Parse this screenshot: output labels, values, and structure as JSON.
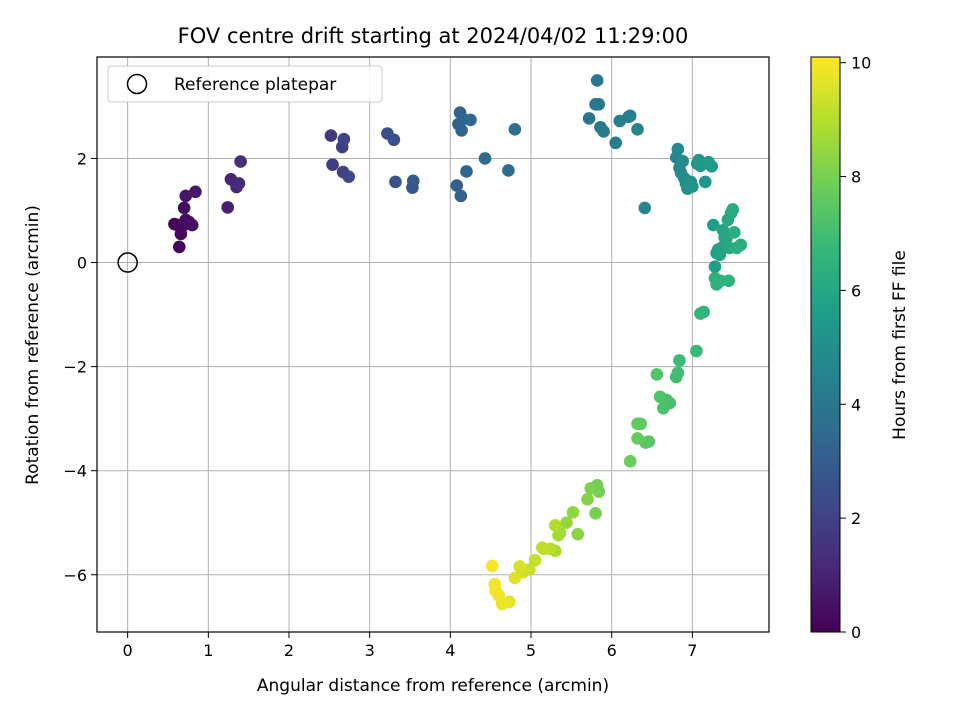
{
  "chart_data": {
    "type": "scatter",
    "title": "FOV centre drift starting at 2024/04/02 11:29:00",
    "xlabel": "Angular distance from reference (arcmin)",
    "ylabel": "Rotation from reference (arcmin)",
    "xlim": [
      -0.38,
      7.95
    ],
    "ylim": [
      -7.1,
      3.95
    ],
    "x_ticks": [
      0,
      1,
      2,
      3,
      4,
      5,
      6,
      7
    ],
    "y_ticks": [
      -6,
      -4,
      -2,
      0,
      2
    ],
    "x_tick_labels": [
      "0",
      "1",
      "2",
      "3",
      "4",
      "5",
      "6",
      "7"
    ],
    "y_tick_labels": [
      "−6",
      "−4",
      "−2",
      "0",
      "2"
    ],
    "grid": true,
    "legend": {
      "position": "top-left",
      "entries": [
        "Reference platepar"
      ]
    },
    "reference_point": {
      "x": 0,
      "y": 0
    },
    "colorbar": {
      "label": "Hours from first FF file",
      "colormap": "viridis",
      "range": [
        0,
        10.1
      ],
      "ticks": [
        0,
        2,
        4,
        6,
        8,
        10
      ],
      "tick_labels": [
        "0",
        "2",
        "4",
        "6",
        "8",
        "10"
      ]
    },
    "colormap_stops": [
      "#440154",
      "#482878",
      "#3e4989",
      "#31688e",
      "#26828e",
      "#1f9e89",
      "#35b779",
      "#6ece58",
      "#b5de2b",
      "#fde725"
    ],
    "series": [
      {
        "x": [
          0.58,
          0.62,
          0.64,
          0.66,
          0.68,
          0.7,
          0.72,
          0.76,
          0.8
        ],
        "y": [
          0.74,
          0.72,
          0.3,
          0.55,
          0.7,
          1.05,
          0.82,
          0.78,
          0.72
        ],
        "c": [
          0.05,
          0.1,
          0.15,
          0.2,
          0.25,
          0.3,
          0.35,
          0.4,
          0.45
        ]
      },
      {
        "x": [
          0.72,
          0.84,
          1.24,
          1.28,
          1.35,
          1.38,
          1.4
        ],
        "y": [
          1.28,
          1.36,
          1.06,
          1.6,
          1.45,
          1.52,
          1.94
        ],
        "c": [
          0.6,
          0.75,
          0.9,
          1.05,
          1.15,
          1.25,
          1.35
        ]
      },
      {
        "x": [
          2.52,
          2.54,
          2.66,
          2.67,
          2.68,
          2.74,
          3.22,
          3.3,
          3.32,
          3.53,
          3.54
        ],
        "y": [
          2.44,
          1.88,
          2.22,
          1.74,
          2.37,
          1.65,
          2.48,
          2.36,
          1.55,
          1.44,
          1.57
        ],
        "c": [
          1.7,
          1.8,
          1.9,
          2.0,
          2.1,
          2.2,
          2.4,
          2.5,
          2.6,
          2.7,
          2.8
        ]
      },
      {
        "x": [
          4.08,
          4.1,
          4.12,
          4.13,
          4.14,
          4.16,
          4.2,
          4.25,
          4.43,
          4.72,
          4.8
        ],
        "y": [
          1.48,
          2.66,
          2.88,
          1.28,
          2.54,
          2.76,
          1.75,
          2.74,
          2.0,
          1.77,
          2.56
        ],
        "c": [
          3.0,
          3.05,
          3.1,
          3.15,
          3.2,
          3.25,
          3.3,
          3.35,
          3.5,
          3.6,
          3.7
        ]
      },
      {
        "x": [
          5.72,
          5.8,
          5.82,
          5.84,
          5.86,
          5.9,
          6.05,
          6.1,
          6.21,
          6.23,
          6.32,
          6.41
        ],
        "y": [
          2.77,
          3.04,
          3.5,
          3.04,
          2.6,
          2.52,
          2.3,
          2.72,
          2.8,
          2.82,
          2.56,
          1.05
        ],
        "c": [
          3.9,
          4.0,
          3.95,
          4.05,
          4.1,
          4.15,
          4.25,
          4.3,
          4.4,
          4.45,
          4.55,
          4.65
        ]
      },
      {
        "x": [
          6.8,
          6.82,
          6.84,
          6.86,
          6.88,
          6.9,
          6.92,
          6.94,
          6.96,
          6.98,
          7.0,
          7.06,
          7.08,
          7.1,
          7.16,
          7.2,
          7.22,
          7.24
        ],
        "y": [
          2.02,
          2.18,
          1.82,
          1.72,
          1.95,
          1.62,
          1.52,
          1.42,
          1.48,
          1.55,
          1.46,
          1.9,
          1.97,
          1.86,
          1.55,
          1.93,
          1.88,
          1.85
        ],
        "c": [
          4.7,
          4.75,
          4.8,
          4.85,
          4.9,
          4.95,
          5.0,
          5.05,
          5.1,
          5.15,
          5.2,
          5.25,
          5.3,
          5.35,
          5.4,
          5.45,
          5.5,
          5.55
        ]
      },
      {
        "x": [
          7.26,
          7.28,
          7.3,
          7.32,
          7.34,
          7.36,
          7.38,
          7.4,
          7.42,
          7.44,
          7.46,
          7.48,
          7.5,
          7.52,
          7.55,
          7.6,
          7.28,
          7.3,
          7.35,
          7.45
        ],
        "y": [
          0.72,
          -0.08,
          0.18,
          0.25,
          0.15,
          0.28,
          0.62,
          0.48,
          0.45,
          0.82,
          0.28,
          0.95,
          1.02,
          0.58,
          0.28,
          0.34,
          -0.3,
          -0.42,
          -0.35,
          -0.35
        ],
        "c": [
          5.6,
          5.65,
          5.7,
          5.75,
          5.8,
          5.85,
          5.9,
          5.95,
          6.0,
          6.05,
          6.1,
          6.15,
          6.2,
          6.25,
          6.3,
          6.35,
          6.4,
          6.45,
          6.5,
          6.55
        ]
      },
      {
        "x": [
          7.1,
          7.14,
          7.05,
          6.84,
          6.82,
          6.8,
          6.72,
          6.68,
          6.64,
          6.6,
          6.56,
          6.46,
          6.42,
          6.36,
          6.32,
          6.32,
          6.23
        ],
        "y": [
          -0.98,
          -0.95,
          -1.7,
          -1.88,
          -2.12,
          -2.2,
          -2.7,
          -2.64,
          -2.8,
          -2.58,
          -2.15,
          -3.44,
          -3.46,
          -3.1,
          -3.1,
          -3.38,
          -3.82
        ],
        "c": [
          6.6,
          6.65,
          6.8,
          6.9,
          6.95,
          7.0,
          7.1,
          7.15,
          7.2,
          7.25,
          7.3,
          7.45,
          7.5,
          7.55,
          7.6,
          7.65,
          7.8
        ]
      },
      {
        "x": [
          5.82,
          5.84,
          5.8,
          5.74,
          5.7,
          5.58,
          5.52,
          5.44,
          5.36,
          5.34,
          5.3,
          5.3,
          5.24,
          5.16,
          5.14
        ],
        "y": [
          -4.28,
          -4.4,
          -4.82,
          -4.34,
          -4.55,
          -5.22,
          -4.8,
          -5.0,
          -5.2,
          -5.24,
          -5.54,
          -5.05,
          -5.5,
          -5.5,
          -5.48
        ],
        "c": [
          7.9,
          7.95,
          8.0,
          8.1,
          8.2,
          8.3,
          8.4,
          8.5,
          8.6,
          8.7,
          8.8,
          8.9,
          9.0,
          9.05,
          9.1
        ]
      },
      {
        "x": [
          5.05,
          4.98,
          4.9,
          4.86,
          4.8,
          4.73,
          4.64,
          4.6,
          4.56,
          4.55,
          4.52
        ],
        "y": [
          -5.72,
          -5.9,
          -5.95,
          -5.84,
          -6.06,
          -6.52,
          -6.56,
          -6.4,
          -6.3,
          -6.18,
          -5.83
        ],
        "c": [
          9.2,
          9.3,
          9.4,
          9.5,
          9.6,
          9.7,
          9.8,
          9.85,
          9.9,
          9.95,
          10.0
        ]
      }
    ]
  }
}
